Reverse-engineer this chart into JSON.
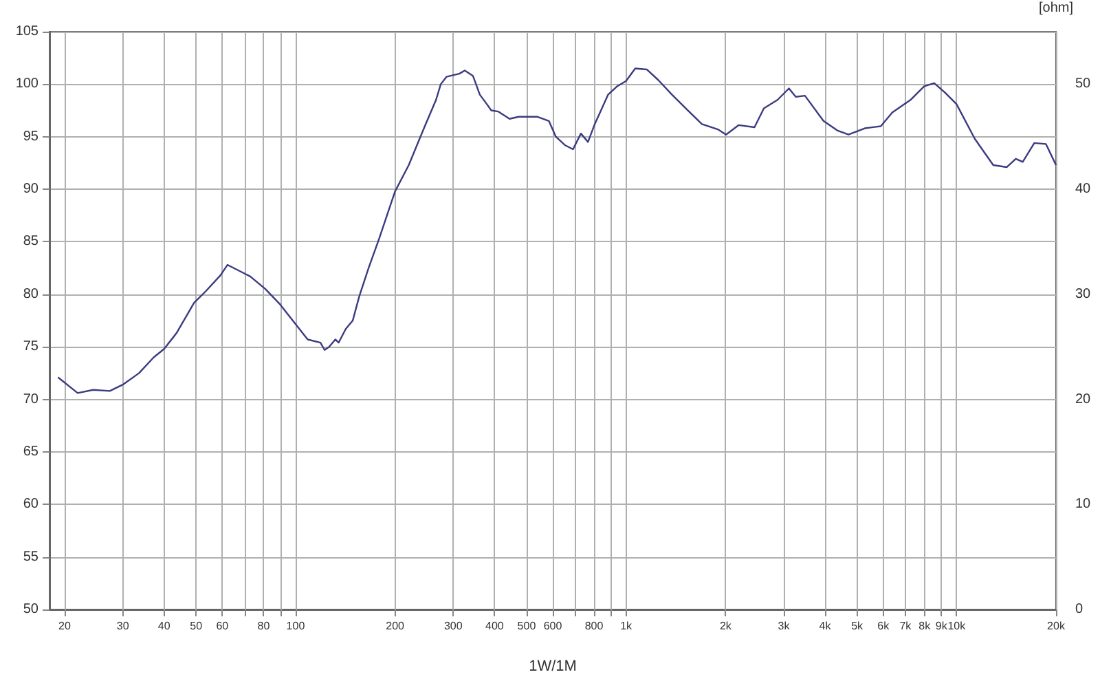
{
  "chart_data": {
    "type": "line",
    "xlabel": "1W/1M",
    "y2label": "[ohm]",
    "x": [
      19.1,
      21.9,
      24.4,
      27.4,
      30,
      33.6,
      37.2,
      40,
      43.6,
      49.3,
      53.5,
      59.2,
      62.2,
      69.8,
      72.9,
      81,
      89.4,
      98.6,
      108.8,
      118.9,
      122.4,
      126.3,
      131.9,
      135,
      141.8,
      148.9,
      155.8,
      166.3,
      179,
      200,
      220,
      246,
      266,
      275,
      286,
      313,
      325,
      344,
      361,
      379,
      391,
      410,
      444,
      473,
      505,
      538,
      584,
      613,
      653,
      691,
      730,
      767,
      804,
      882,
      940,
      1000,
      1066,
      1155,
      1251,
      1377,
      1539,
      1696,
      1896,
      2007,
      2190,
      2447,
      2612,
      2872,
      3111,
      3263,
      3478,
      3957,
      4355,
      4711,
      5275,
      5900,
      6392,
      7255,
      7986,
      8562,
      9230,
      10000,
      11357,
      12915,
      14181,
      15114,
      15860,
      17198,
      18647,
      20000
    ],
    "series": [
      {
        "color": "#3b3b80",
        "values": [
          72.1,
          70.6,
          70.9,
          70.8,
          71.4,
          72.5,
          74,
          74.8,
          76.3,
          79.2,
          80.3,
          81.8,
          82.8,
          82,
          81.7,
          80.5,
          79.1,
          77.4,
          75.7,
          75.4,
          74.7,
          75,
          75.7,
          75.4,
          76.7,
          77.5,
          79.8,
          82.5,
          85.3,
          89.8,
          92.3,
          96,
          98.5,
          100,
          100.7,
          101,
          101.3,
          100.8,
          99,
          98.1,
          97.5,
          97.4,
          96.7,
          96.9,
          96.9,
          96.9,
          96.5,
          95,
          94.2,
          93.8,
          95.3,
          94.5,
          96.2,
          99,
          99.8,
          100.3,
          101.5,
          101.4,
          100.4,
          99,
          97.5,
          96.2,
          95.7,
          95.2,
          96.1,
          95.9,
          97.7,
          98.5,
          99.6,
          98.8,
          98.9,
          96.5,
          95.6,
          95.2,
          95.8,
          96,
          97.3,
          98.5,
          99.8,
          100.1,
          99.2,
          98.1,
          94.8,
          92.3,
          92.1,
          92.9,
          92.6,
          94.4,
          94.3,
          92.3
        ]
      }
    ],
    "log": "x",
    "xlim": [
      18,
      20000
    ],
    "xticks": [
      20,
      30,
      40,
      50,
      60,
      {
        "value": 70,
        "label": null
      },
      80,
      {
        "value": 90,
        "label": null
      },
      100,
      200,
      300,
      400,
      500,
      600,
      {
        "value": 700,
        "label": null
      },
      800,
      {
        "value": 900,
        "label": null
      },
      {
        "value": 1000,
        "label": "1k"
      },
      {
        "value": 2000,
        "label": "2k"
      },
      {
        "value": 3000,
        "label": "3k"
      },
      {
        "value": 4000,
        "label": "4k"
      },
      {
        "value": 5000,
        "label": "5k"
      },
      {
        "value": 6000,
        "label": "6k"
      },
      {
        "value": 7000,
        "label": "7k"
      },
      {
        "value": 8000,
        "label": "8k"
      },
      {
        "value": 9000,
        "label": "9k"
      },
      {
        "value": 10000,
        "label": "10k"
      },
      {
        "value": 20000,
        "label": "20k"
      }
    ],
    "ylim": [
      50,
      105
    ],
    "yticks": [
      50,
      55,
      60,
      65,
      70,
      75,
      80,
      85,
      90,
      95,
      100,
      105
    ],
    "y2lim": [
      0,
      55
    ],
    "y2ticks": [
      0,
      10,
      20,
      30,
      40,
      50
    ],
    "grid": true,
    "marker": "none",
    "line_style": "solid"
  }
}
